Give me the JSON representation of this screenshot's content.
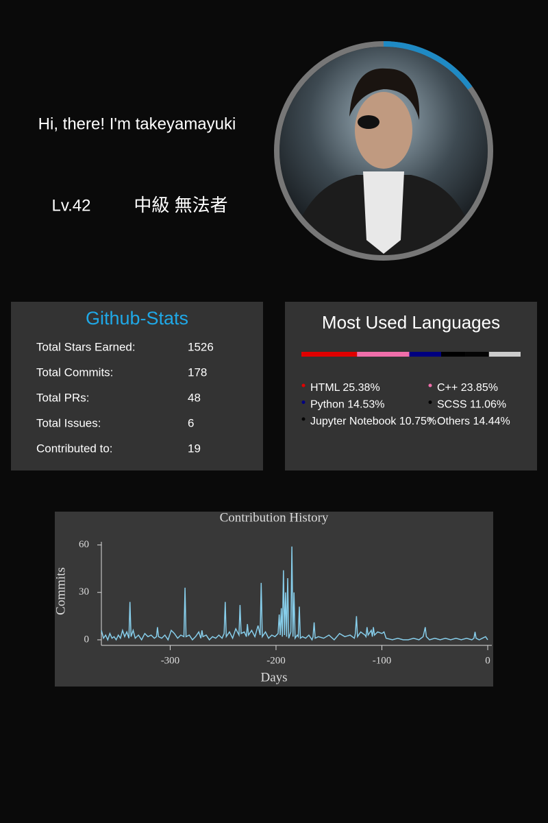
{
  "header": {
    "greeting": "Hi, there! I'm takeyamayuki",
    "level": "Lv.42",
    "rank": "中級 無法者",
    "progress": 15
  },
  "stats": {
    "title": "Github-Stats",
    "rows": [
      {
        "label": "Total Stars Earned:",
        "value": 1526
      },
      {
        "label": "Total Commits:",
        "value": 178
      },
      {
        "label": "Total PRs:",
        "value": 48
      },
      {
        "label": "Total Issues:",
        "value": 6
      },
      {
        "label": "Contributed to:",
        "value": 19
      }
    ]
  },
  "languages": {
    "title": "Most Used Languages",
    "items": [
      {
        "label": "HTML 25.38%",
        "value": 25.38,
        "color": "#e00000"
      },
      {
        "label": "C++ 23.85%",
        "value": 23.85,
        "color": "#f06eaa"
      },
      {
        "label": "Python 14.53%",
        "value": 14.53,
        "color": "#000080"
      },
      {
        "label": "SCSS 11.06%",
        "value": 11.06,
        "color": "#000000"
      },
      {
        "label": "Jupyter Notebook 10.75%",
        "value": 10.75,
        "color": "#050505"
      },
      {
        "label": "Others 14.44%",
        "value": 14.44,
        "color": "#cccccc"
      }
    ]
  },
  "chart_data": {
    "type": "line",
    "title": "Contribution History",
    "x_label": "Days",
    "y_label": "Commits",
    "x": [
      -365,
      -363,
      -361,
      -359,
      -357,
      -355,
      -353,
      -351,
      -349,
      -347,
      -345,
      -343,
      -341,
      -339,
      -338,
      -337,
      -335,
      -333,
      -330,
      -327,
      -324,
      -321,
      -318,
      -315,
      -313,
      -312,
      -311,
      -308,
      -305,
      -302,
      -299,
      -296,
      -293,
      -290,
      -287,
      -286,
      -285,
      -282,
      -279,
      -276,
      -273,
      -271,
      -270,
      -269,
      -266,
      -263,
      -260,
      -257,
      -254,
      -251,
      -249,
      -248,
      -247,
      -244,
      -241,
      -238,
      -235,
      -234,
      -233,
      -230,
      -228,
      -227,
      -226,
      -223,
      -220,
      -217,
      -215,
      -214,
      -213,
      -210,
      -207,
      -204,
      -201,
      -198,
      -197,
      -196,
      -195,
      -194,
      -193,
      -192,
      -191,
      -190,
      -189,
      -188,
      -186,
      -185,
      -184,
      -183,
      -182,
      -180,
      -179,
      -178,
      -177,
      -175,
      -172,
      -169,
      -166,
      -165,
      -164,
      -163,
      -160,
      -155,
      -150,
      -145,
      -140,
      -135,
      -130,
      -126,
      -125,
      -124,
      -123,
      -120,
      -116,
      -115,
      -114,
      -113,
      -110,
      -109,
      -108,
      -107,
      -104,
      -100,
      -98,
      -96,
      -90,
      -85,
      -80,
      -75,
      -70,
      -65,
      -61,
      -60,
      -59,
      -58,
      -55,
      -50,
      -45,
      -40,
      -35,
      -30,
      -25,
      -20,
      -15,
      -13,
      -12,
      -11,
      -8,
      -5,
      -2,
      0
    ],
    "series": [
      {
        "name": "Commits",
        "color": "#87ceeb",
        "values": [
          6,
          1,
          3,
          0,
          4,
          1,
          2,
          0,
          3,
          1,
          6,
          2,
          5,
          1,
          24,
          2,
          6,
          1,
          3,
          0,
          4,
          2,
          3,
          1,
          2,
          8,
          2,
          1,
          3,
          0,
          6,
          4,
          1,
          3,
          2,
          33,
          2,
          3,
          0,
          2,
          5,
          1,
          6,
          2,
          3,
          0,
          2,
          1,
          3,
          1,
          4,
          24,
          2,
          5,
          1,
          7,
          3,
          22,
          4,
          5,
          2,
          10,
          3,
          6,
          2,
          9,
          3,
          36,
          2,
          5,
          1,
          3,
          2,
          4,
          16,
          3,
          20,
          2,
          44,
          3,
          30,
          2,
          39,
          1,
          5,
          59,
          2,
          30,
          1,
          3,
          2,
          21,
          1,
          2,
          1,
          3,
          0,
          2,
          11,
          1,
          2,
          1,
          3,
          0,
          4,
          2,
          3,
          1,
          4,
          15,
          2,
          5,
          3,
          2,
          8,
          3,
          6,
          2,
          8,
          3,
          5,
          4,
          5,
          1,
          0,
          1,
          0,
          0,
          1,
          0,
          2,
          5,
          8,
          2,
          0,
          1,
          0,
          1,
          0,
          1,
          0,
          1,
          0,
          1,
          5,
          1,
          0,
          1,
          2,
          0
        ]
      }
    ],
    "xlim": [
      -365,
      0
    ],
    "ylim": [
      -3.5,
      62
    ],
    "xticks": [
      -300,
      -200,
      -100,
      0
    ],
    "yticks": [
      0,
      30,
      60
    ]
  }
}
